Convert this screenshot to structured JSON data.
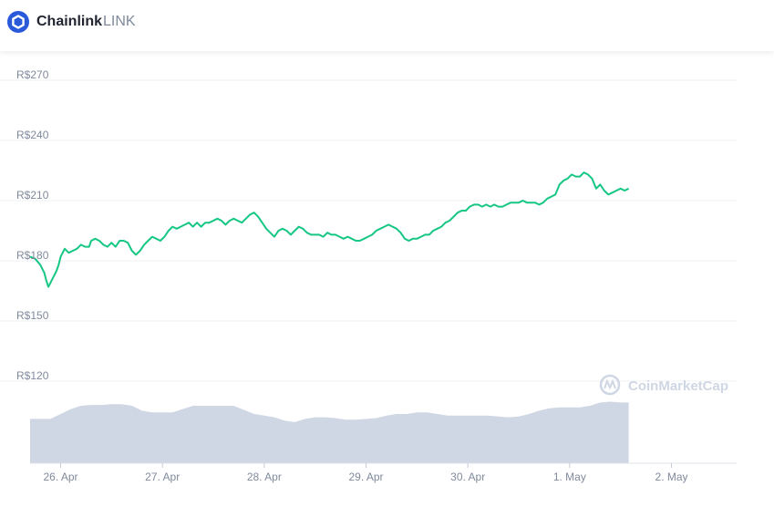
{
  "header": {
    "name": "Chainlink",
    "symbol": "LINK",
    "logo_icon": "chainlink-hexagon-icon",
    "brand_color": "#2a5ada"
  },
  "watermark": {
    "text": "CoinMarketCap",
    "icon": "coinmarketcap-icon"
  },
  "colors": {
    "line": "#16c784",
    "volume": "#cfd6e4",
    "grid": "#eff2f5",
    "axis_text": "#808a9d"
  },
  "chart_data": {
    "type": "line",
    "title": "",
    "xlabel": "",
    "ylabel": "",
    "currency_prefix": "R$",
    "ylim": [
      110,
      280
    ],
    "y_ticks": [
      270,
      240,
      210,
      180,
      150,
      120
    ],
    "y_tick_labels": [
      "R$270",
      "R$240",
      "R$210",
      "R$180",
      "R$150",
      "R$120"
    ],
    "x_ticks": [
      1,
      2,
      3,
      4,
      5,
      6,
      7
    ],
    "x_tick_labels": [
      "26. Apr",
      "27. Apr",
      "28. Apr",
      "29. Apr",
      "30. Apr",
      "1. May",
      "2. May"
    ],
    "xlim": [
      0.7,
      7.64
    ],
    "grid": true,
    "series": [
      {
        "values": [
          [
            0.7,
            182
          ],
          [
            0.75,
            181
          ],
          [
            0.8,
            178
          ],
          [
            0.84,
            174
          ],
          [
            0.86,
            170
          ],
          [
            0.88,
            167
          ],
          [
            0.9,
            169
          ],
          [
            0.93,
            172
          ],
          [
            0.96,
            175
          ],
          [
            0.98,
            178
          ],
          [
            1.0,
            182
          ],
          [
            1.04,
            186
          ],
          [
            1.08,
            184
          ],
          [
            1.12,
            185
          ],
          [
            1.16,
            186
          ],
          [
            1.2,
            188
          ],
          [
            1.24,
            187
          ],
          [
            1.28,
            187
          ],
          [
            1.3,
            190
          ],
          [
            1.34,
            191
          ],
          [
            1.38,
            190
          ],
          [
            1.42,
            188
          ],
          [
            1.46,
            187
          ],
          [
            1.5,
            189
          ],
          [
            1.54,
            187
          ],
          [
            1.58,
            190
          ],
          [
            1.62,
            190
          ],
          [
            1.66,
            189
          ],
          [
            1.7,
            185
          ],
          [
            1.74,
            183
          ],
          [
            1.78,
            185
          ],
          [
            1.82,
            188
          ],
          [
            1.86,
            190
          ],
          [
            1.9,
            192
          ],
          [
            1.94,
            191
          ],
          [
            1.98,
            190
          ],
          [
            2.02,
            192
          ],
          [
            2.06,
            195
          ],
          [
            2.1,
            197
          ],
          [
            2.14,
            196
          ],
          [
            2.18,
            197
          ],
          [
            2.22,
            198
          ],
          [
            2.26,
            199
          ],
          [
            2.3,
            197
          ],
          [
            2.34,
            199
          ],
          [
            2.38,
            197
          ],
          [
            2.42,
            199
          ],
          [
            2.46,
            199
          ],
          [
            2.5,
            200
          ],
          [
            2.54,
            201
          ],
          [
            2.58,
            200
          ],
          [
            2.62,
            198
          ],
          [
            2.66,
            200
          ],
          [
            2.7,
            201
          ],
          [
            2.74,
            200
          ],
          [
            2.78,
            199
          ],
          [
            2.82,
            201
          ],
          [
            2.86,
            203
          ],
          [
            2.9,
            204
          ],
          [
            2.94,
            202
          ],
          [
            2.98,
            199
          ],
          [
            3.02,
            196
          ],
          [
            3.06,
            194
          ],
          [
            3.1,
            192
          ],
          [
            3.14,
            195
          ],
          [
            3.18,
            196
          ],
          [
            3.22,
            195
          ],
          [
            3.26,
            193
          ],
          [
            3.3,
            195
          ],
          [
            3.34,
            197
          ],
          [
            3.38,
            196
          ],
          [
            3.42,
            194
          ],
          [
            3.46,
            193
          ],
          [
            3.5,
            193
          ],
          [
            3.54,
            193
          ],
          [
            3.58,
            192
          ],
          [
            3.62,
            194
          ],
          [
            3.66,
            193
          ],
          [
            3.7,
            193
          ],
          [
            3.74,
            192
          ],
          [
            3.78,
            191
          ],
          [
            3.82,
            192
          ],
          [
            3.86,
            191
          ],
          [
            3.9,
            190
          ],
          [
            3.94,
            190
          ],
          [
            3.98,
            191
          ],
          [
            4.02,
            192
          ],
          [
            4.06,
            193
          ],
          [
            4.1,
            195
          ],
          [
            4.14,
            196
          ],
          [
            4.18,
            197
          ],
          [
            4.22,
            198
          ],
          [
            4.26,
            197
          ],
          [
            4.3,
            196
          ],
          [
            4.34,
            194
          ],
          [
            4.38,
            191
          ],
          [
            4.42,
            190
          ],
          [
            4.46,
            191
          ],
          [
            4.5,
            191
          ],
          [
            4.54,
            192
          ],
          [
            4.58,
            193
          ],
          [
            4.62,
            193
          ],
          [
            4.66,
            195
          ],
          [
            4.7,
            196
          ],
          [
            4.74,
            197
          ],
          [
            4.78,
            199
          ],
          [
            4.82,
            200
          ],
          [
            4.86,
            202
          ],
          [
            4.9,
            204
          ],
          [
            4.94,
            205
          ],
          [
            4.98,
            205
          ],
          [
            5.02,
            207
          ],
          [
            5.06,
            208
          ],
          [
            5.1,
            208
          ],
          [
            5.14,
            207
          ],
          [
            5.18,
            208
          ],
          [
            5.22,
            207
          ],
          [
            5.26,
            208
          ],
          [
            5.3,
            207
          ],
          [
            5.34,
            207
          ],
          [
            5.38,
            208
          ],
          [
            5.42,
            209
          ],
          [
            5.46,
            209
          ],
          [
            5.5,
            209
          ],
          [
            5.54,
            210
          ],
          [
            5.58,
            209
          ],
          [
            5.62,
            209
          ],
          [
            5.66,
            209
          ],
          [
            5.7,
            208
          ],
          [
            5.74,
            209
          ],
          [
            5.78,
            211
          ],
          [
            5.82,
            212
          ],
          [
            5.86,
            213
          ],
          [
            5.9,
            218
          ],
          [
            5.94,
            220
          ],
          [
            5.98,
            221
          ],
          [
            6.02,
            223
          ],
          [
            6.06,
            222
          ],
          [
            6.1,
            222
          ],
          [
            6.14,
            224
          ],
          [
            6.18,
            223
          ],
          [
            6.22,
            221
          ],
          [
            6.26,
            216
          ],
          [
            6.3,
            218
          ],
          [
            6.34,
            215
          ],
          [
            6.38,
            213
          ],
          [
            6.42,
            214
          ],
          [
            6.46,
            215
          ],
          [
            6.5,
            216
          ],
          [
            6.54,
            215
          ],
          [
            6.58,
            216
          ]
        ]
      }
    ],
    "volume": {
      "values": [
        [
          0.7,
          0.54
        ],
        [
          0.9,
          0.54
        ],
        [
          1.0,
          0.6
        ],
        [
          1.1,
          0.66
        ],
        [
          1.2,
          0.7
        ],
        [
          1.3,
          0.71
        ],
        [
          1.4,
          0.71
        ],
        [
          1.5,
          0.72
        ],
        [
          1.6,
          0.72
        ],
        [
          1.7,
          0.7
        ],
        [
          1.8,
          0.64
        ],
        [
          1.9,
          0.62
        ],
        [
          2.0,
          0.62
        ],
        [
          2.1,
          0.62
        ],
        [
          2.2,
          0.66
        ],
        [
          2.3,
          0.7
        ],
        [
          2.4,
          0.7
        ],
        [
          2.5,
          0.7
        ],
        [
          2.6,
          0.7
        ],
        [
          2.7,
          0.7
        ],
        [
          2.8,
          0.65
        ],
        [
          2.9,
          0.6
        ],
        [
          3.0,
          0.58
        ],
        [
          3.1,
          0.56
        ],
        [
          3.2,
          0.52
        ],
        [
          3.3,
          0.5
        ],
        [
          3.4,
          0.54
        ],
        [
          3.5,
          0.56
        ],
        [
          3.6,
          0.56
        ],
        [
          3.7,
          0.55
        ],
        [
          3.8,
          0.53
        ],
        [
          3.9,
          0.53
        ],
        [
          4.0,
          0.54
        ],
        [
          4.1,
          0.55
        ],
        [
          4.2,
          0.58
        ],
        [
          4.3,
          0.6
        ],
        [
          4.4,
          0.6
        ],
        [
          4.5,
          0.62
        ],
        [
          4.6,
          0.62
        ],
        [
          4.7,
          0.6
        ],
        [
          4.8,
          0.58
        ],
        [
          4.9,
          0.58
        ],
        [
          5.0,
          0.58
        ],
        [
          5.1,
          0.58
        ],
        [
          5.2,
          0.58
        ],
        [
          5.3,
          0.57
        ],
        [
          5.4,
          0.56
        ],
        [
          5.5,
          0.57
        ],
        [
          5.6,
          0.6
        ],
        [
          5.7,
          0.64
        ],
        [
          5.8,
          0.67
        ],
        [
          5.9,
          0.68
        ],
        [
          6.0,
          0.68
        ],
        [
          6.1,
          0.68
        ],
        [
          6.2,
          0.7
        ],
        [
          6.3,
          0.74
        ],
        [
          6.4,
          0.75
        ],
        [
          6.5,
          0.74
        ],
        [
          6.58,
          0.74
        ]
      ]
    }
  }
}
